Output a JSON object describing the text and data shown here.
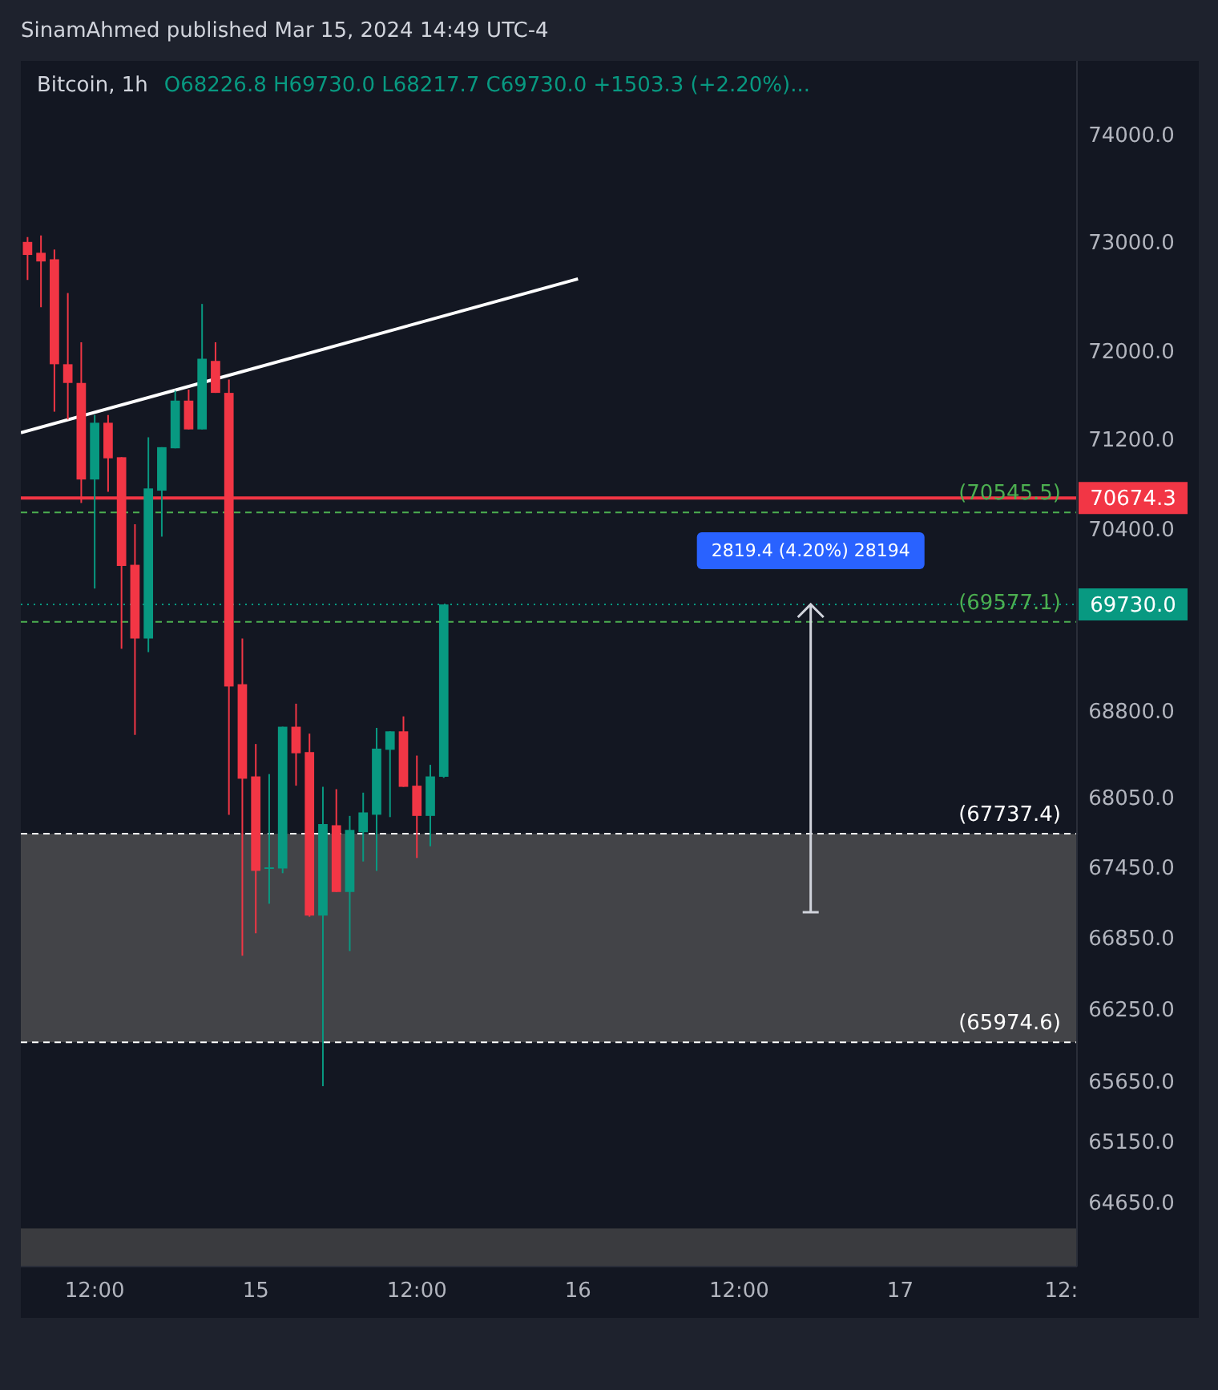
{
  "chart_data": {
    "type": "candlestick",
    "title": "Bitcoin, 1h",
    "subtitle": "O68226.8 H69730.0 L68217.7 C69730.0 +1503.3 (+2.20%)...",
    "x": [
      "2024-03-14T07:00",
      "2024-03-14T08:00",
      "2024-03-14T09:00",
      "2024-03-14T10:00",
      "2024-03-14T11:00",
      "2024-03-14T12:00",
      "2024-03-14T13:00",
      "2024-03-14T14:00",
      "2024-03-14T15:00",
      "2024-03-14T16:00",
      "2024-03-14T17:00",
      "2024-03-14T18:00",
      "2024-03-14T19:00",
      "2024-03-14T20:00",
      "2024-03-14T21:00",
      "2024-03-14T22:00",
      "2024-03-14T23:00",
      "2024-03-15T00:00",
      "2024-03-15T01:00",
      "2024-03-15T02:00",
      "2024-03-15T03:00",
      "2024-03-15T04:00",
      "2024-03-15T05:00",
      "2024-03-15T06:00",
      "2024-03-15T07:00",
      "2024-03-15T08:00",
      "2024-03-15T09:00",
      "2024-03-15T10:00",
      "2024-03-15T11:00",
      "2024-03-15T12:00",
      "2024-03-15T13:00",
      "2024-03-15T14:00"
    ],
    "ohlc": [
      [
        73000,
        73045,
        72650,
        72880
      ],
      [
        72900,
        73060,
        72400,
        72820
      ],
      [
        72840,
        72930,
        71450,
        71880
      ],
      [
        71880,
        72530,
        71380,
        71710
      ],
      [
        71710,
        72080,
        70630,
        70840
      ],
      [
        70840,
        71420,
        69870,
        71350
      ],
      [
        71350,
        71420,
        70730,
        71030
      ],
      [
        71040,
        71040,
        69340,
        70070
      ],
      [
        70080,
        70440,
        68590,
        69430
      ],
      [
        69430,
        71220,
        69310,
        70760
      ],
      [
        70740,
        71130,
        70330,
        71130
      ],
      [
        71120,
        71640,
        71120,
        71550
      ],
      [
        71550,
        71650,
        71290,
        71290
      ],
      [
        71290,
        72430,
        71290,
        71930
      ],
      [
        71910,
        72080,
        71620,
        71620
      ],
      [
        71620,
        71740,
        67900,
        69010
      ],
      [
        69030,
        69430,
        66700,
        68210
      ],
      [
        68230,
        68510,
        66890,
        67420
      ],
      [
        67440,
        68250,
        67140,
        67450
      ],
      [
        67440,
        68660,
        67400,
        68660
      ],
      [
        68660,
        68860,
        68150,
        68430
      ],
      [
        68440,
        68600,
        67030,
        67040
      ],
      [
        67040,
        68140,
        65610,
        67820
      ],
      [
        67810,
        68120,
        67240,
        67240
      ],
      [
        67240,
        67890,
        66740,
        67770
      ],
      [
        67750,
        68090,
        67500,
        67920
      ],
      [
        67900,
        68650,
        67420,
        68470
      ],
      [
        68460,
        68620,
        67880,
        68620
      ],
      [
        68620,
        68750,
        68140,
        68140
      ],
      [
        68150,
        68410,
        67530,
        67890
      ],
      [
        67890,
        68330,
        67630,
        68230
      ],
      [
        68226.8,
        69730,
        68217.7,
        69730
      ]
    ],
    "series": [
      {
        "type": "line",
        "color": "#ffffff",
        "x": [
          "2024-03-14T06:30",
          "2024-03-16T00:00"
        ],
        "values": [
          71260,
          72660
        ]
      }
    ],
    "xlim": [
      "2024-03-14T06:30",
      "2024-03-17T13:10"
    ],
    "xticks": [
      {
        "value": "2024-03-14T12:00",
        "label": "12:00"
      },
      {
        "value": "2024-03-15T00:00",
        "label": "15"
      },
      {
        "value": "2024-03-15T12:00",
        "label": "12:00"
      },
      {
        "value": "2024-03-16T00:00",
        "label": "16"
      },
      {
        "value": "2024-03-16T12:00",
        "label": "12:00"
      },
      {
        "value": "2024-03-17T00:00",
        "label": "17"
      },
      {
        "value": "2024-03-17T12:00",
        "label": "12:"
      }
    ],
    "ylim": [
      64130,
      74690
    ],
    "log": true,
    "yticks": [
      {
        "value": 64650,
        "label": "64650.0"
      },
      {
        "value": 65150,
        "label": "65150.0"
      },
      {
        "value": 65650,
        "label": "65650.0"
      },
      {
        "value": 66250,
        "label": "66250.0"
      },
      {
        "value": 66850,
        "label": "66850.0"
      },
      {
        "value": 67450,
        "label": "67450.0"
      },
      {
        "value": 68050,
        "label": "68050.0"
      },
      {
        "value": 68800,
        "label": "68800.0"
      },
      {
        "value": 70400,
        "label": "70400.0"
      },
      {
        "value": 71200,
        "label": "71200.0"
      },
      {
        "value": 72000,
        "label": "72000.0"
      },
      {
        "value": 73000,
        "label": "73000.0"
      },
      {
        "value": 74000,
        "label": "74000.0"
      }
    ],
    "ref_lines": [
      {
        "axis": "y",
        "value": 70674.3,
        "label": "70674.3",
        "color": "#f23645",
        "line_style": "solid"
      },
      {
        "axis": "y",
        "value": 70545.5,
        "label": "(70545.5)",
        "color": "#4caf50",
        "line_style": "dashed"
      },
      {
        "axis": "y",
        "value": 69730.0,
        "label": "69730.0",
        "color": "#089981",
        "line_style": "dotted"
      },
      {
        "axis": "y",
        "value": 69577.1,
        "label": "(69577.1)",
        "color": "#4caf50",
        "line_style": "dashed"
      },
      {
        "axis": "y",
        "value": 67737.4,
        "label": "(67737.4)",
        "color": "#ffffff",
        "line_style": "dashed"
      },
      {
        "axis": "y",
        "value": 65974.6,
        "label": "(65974.6)",
        "color": "#ffffff",
        "line_style": "dashed"
      }
    ],
    "bands": [
      {
        "axis": "y",
        "from": 65974.6,
        "to": 67737.4,
        "color": "#434448"
      },
      {
        "axis": "y",
        "from": 64130,
        "to": 64440,
        "color": "#3a3b3f"
      }
    ],
    "annotations": [
      "SinamAhmed published Mar 15, 2024 14:49 UTC-4",
      {
        "text": "2819.4 (4.20%) 28194",
        "x": "2024-03-16T17:20",
        "y": 69730
      }
    ]
  }
}
